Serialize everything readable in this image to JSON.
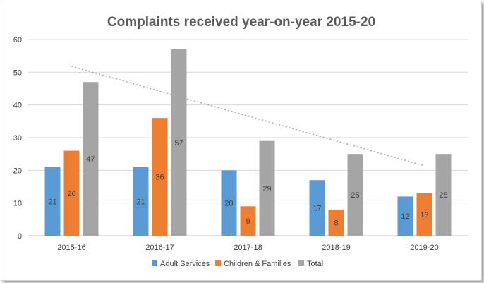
{
  "chart_data": {
    "type": "bar",
    "title": "Complaints received year-on-year 2015-20",
    "categories": [
      "2015-16",
      "2016-17",
      "2017-18",
      "2018-19",
      "2019-20"
    ],
    "series": [
      {
        "name": "Adult Services",
        "values": [
          21,
          21,
          20,
          17,
          12
        ],
        "color": "#5b9bd5"
      },
      {
        "name": "Children & Families",
        "values": [
          26,
          36,
          9,
          8,
          13
        ],
        "color": "#ed7d31"
      },
      {
        "name": "Total",
        "values": [
          47,
          57,
          29,
          25,
          25
        ],
        "color": "#a5a5a5"
      }
    ],
    "ylim": [
      0,
      60
    ],
    "yticks": [
      0,
      10,
      20,
      30,
      40,
      50,
      60
    ],
    "xlabel": "",
    "ylabel": "",
    "grid": true,
    "legend_position": "bottom",
    "data_labels": true,
    "trendline": {
      "series": "Total",
      "type": "linear",
      "style": "dotted",
      "color": "#a5a5a5"
    }
  }
}
